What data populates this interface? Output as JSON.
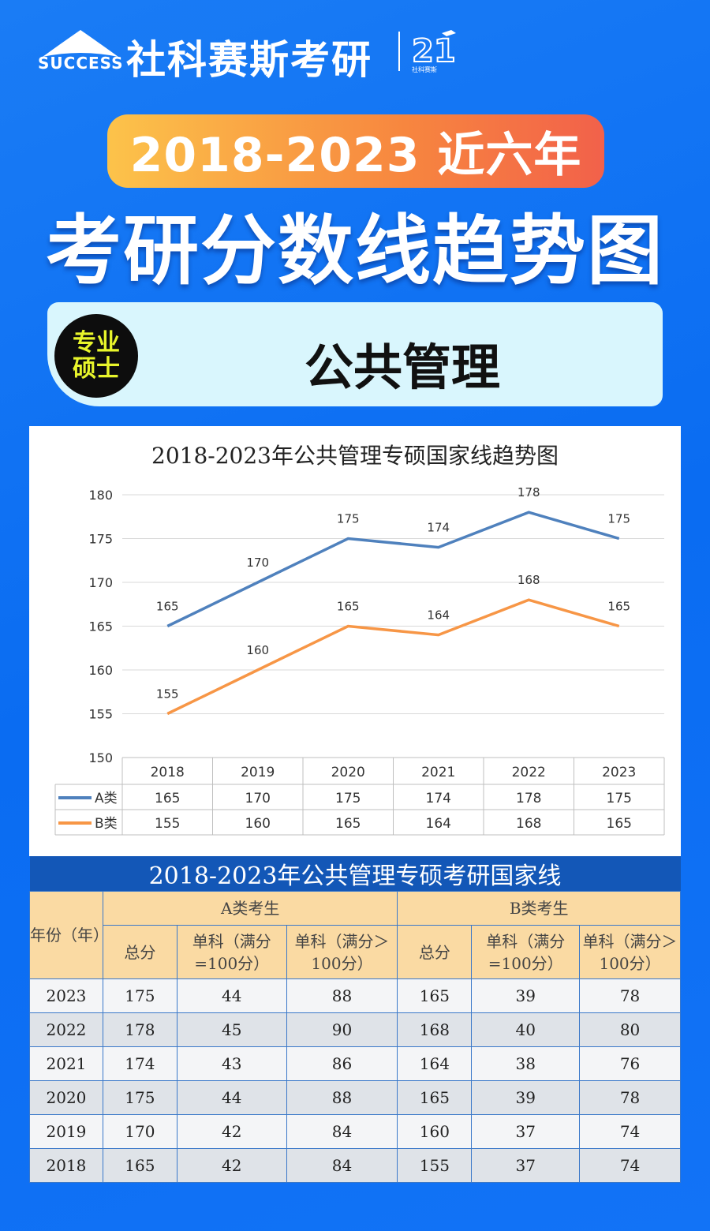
{
  "brand": {
    "name": "社科赛斯考研",
    "tagline": "SUCCESS",
    "anniversary_logo": "21 社科赛斯 SUCCESS"
  },
  "header": {
    "pill": "2018-2023 近六年",
    "title": "考研分数线趋势图"
  },
  "subject": {
    "badge_line1": "专业",
    "badge_line2": "硕士",
    "name": "公共管理"
  },
  "colors": {
    "series_a": "#4f81bd",
    "series_b": "#f79646",
    "table_caption": "#1357b7",
    "table_header": "#fadaa3"
  },
  "chart_data": {
    "type": "line",
    "title": "2018-2023年公共管理专硕国家线趋势图",
    "categories": [
      "2018",
      "2019",
      "2020",
      "2021",
      "2022",
      "2023"
    ],
    "ylim": [
      150,
      180
    ],
    "yticks": [
      150,
      155,
      160,
      165,
      170,
      175,
      180
    ],
    "grid": true,
    "legend": "data-table-below",
    "series": [
      {
        "name": "A类",
        "values": [
          165,
          170,
          175,
          174,
          178,
          175
        ]
      },
      {
        "name": "B类",
        "values": [
          155,
          160,
          165,
          164,
          168,
          165
        ]
      }
    ]
  },
  "table": {
    "caption": "2018-2023年公共管理专硕考研国家线",
    "year_header": "年份（年）",
    "group_a": "A类考生",
    "group_b": "B类考生",
    "sub_headers": [
      "总分",
      "单科（满分=100分）",
      "单科（满分＞100分）",
      "总分",
      "单科（满分=100分）",
      "单科（满分＞100分）"
    ],
    "rows": [
      [
        "2023",
        "175",
        "44",
        "88",
        "165",
        "39",
        "78"
      ],
      [
        "2022",
        "178",
        "45",
        "90",
        "168",
        "40",
        "80"
      ],
      [
        "2021",
        "174",
        "43",
        "86",
        "164",
        "38",
        "76"
      ],
      [
        "2020",
        "175",
        "44",
        "88",
        "165",
        "39",
        "78"
      ],
      [
        "2019",
        "170",
        "42",
        "84",
        "160",
        "37",
        "74"
      ],
      [
        "2018",
        "165",
        "42",
        "84",
        "155",
        "37",
        "74"
      ]
    ]
  }
}
